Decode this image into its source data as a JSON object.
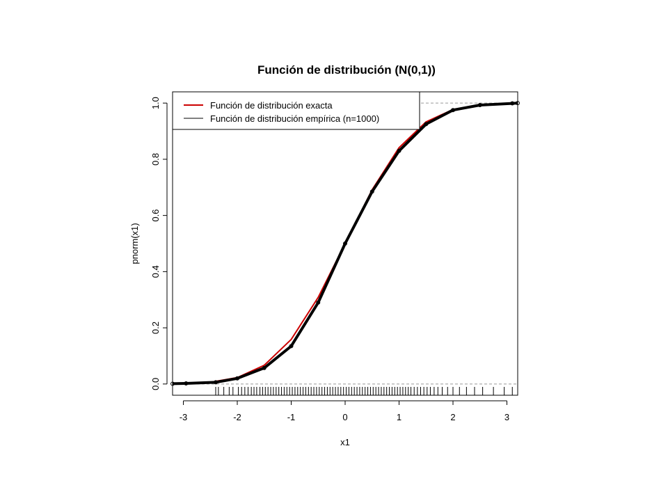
{
  "chart_data": {
    "type": "line",
    "title": "Función de distribución (N(0,1))",
    "xlabel": "x1",
    "ylabel": "pnorm(x1)",
    "xlim": [
      -3.2,
      3.2
    ],
    "ylim": [
      -0.04,
      1.04
    ],
    "x_ticks": [
      "-3",
      "-2",
      "-1",
      "0",
      "1",
      "2",
      "3"
    ],
    "y_ticks": [
      "0.0",
      "0.2",
      "0.4",
      "0.6",
      "0.8",
      "1.0"
    ],
    "reference_lines_y": [
      0,
      1
    ],
    "legend": {
      "position": "top-left",
      "entries": [
        {
          "label": "Función de distribución exacta",
          "color": "#cc0000"
        },
        {
          "label": "Función de distribución empírica (n=1000)",
          "color": "#000000"
        }
      ]
    },
    "series": [
      {
        "name": "Función de distribución exacta",
        "color": "#cc0000",
        "x": [
          -3.2,
          -3.0,
          -2.5,
          -2.0,
          -1.5,
          -1.0,
          -0.5,
          0.0,
          0.5,
          1.0,
          1.5,
          2.0,
          2.5,
          3.0,
          3.2
        ],
        "y": [
          0.0007,
          0.0013,
          0.0062,
          0.0228,
          0.0668,
          0.1587,
          0.3085,
          0.5,
          0.6915,
          0.8413,
          0.9332,
          0.9772,
          0.9938,
          0.9987,
          0.9993
        ]
      },
      {
        "name": "Función de distribución empírica (n=1000)",
        "color": "#000000",
        "x": [
          -3.2,
          -2.95,
          -2.4,
          -2.0,
          -1.5,
          -1.0,
          -0.5,
          0.0,
          0.5,
          1.0,
          1.5,
          2.0,
          2.5,
          3.1,
          3.2
        ],
        "y": [
          0.001,
          0.002,
          0.006,
          0.02,
          0.057,
          0.135,
          0.29,
          0.5,
          0.685,
          0.83,
          0.925,
          0.975,
          0.993,
          0.999,
          1.0
        ]
      }
    ],
    "rug_x": [
      -2.4,
      -2.35,
      -2.25,
      -2.15,
      -2.08,
      -1.98,
      -1.92,
      -1.86,
      -1.8,
      -1.74,
      -1.69,
      -1.64,
      -1.58,
      -1.53,
      -1.48,
      -1.43,
      -1.38,
      -1.33,
      -1.28,
      -1.23,
      -1.18,
      -1.13,
      -1.08,
      -1.03,
      -0.98,
      -0.93,
      -0.88,
      -0.83,
      -0.78,
      -0.73,
      -0.68,
      -0.63,
      -0.58,
      -0.53,
      -0.48,
      -0.43,
      -0.38,
      -0.33,
      -0.28,
      -0.23,
      -0.18,
      -0.13,
      -0.08,
      -0.03,
      0.02,
      0.07,
      0.12,
      0.17,
      0.22,
      0.27,
      0.32,
      0.37,
      0.42,
      0.47,
      0.52,
      0.57,
      0.62,
      0.67,
      0.72,
      0.77,
      0.82,
      0.87,
      0.92,
      0.97,
      1.02,
      1.07,
      1.12,
      1.17,
      1.22,
      1.28,
      1.34,
      1.4,
      1.46,
      1.52,
      1.58,
      1.65,
      1.72,
      1.8,
      1.9,
      2.0,
      2.12,
      2.25,
      2.4,
      2.55,
      2.75,
      2.95,
      3.1
    ]
  }
}
